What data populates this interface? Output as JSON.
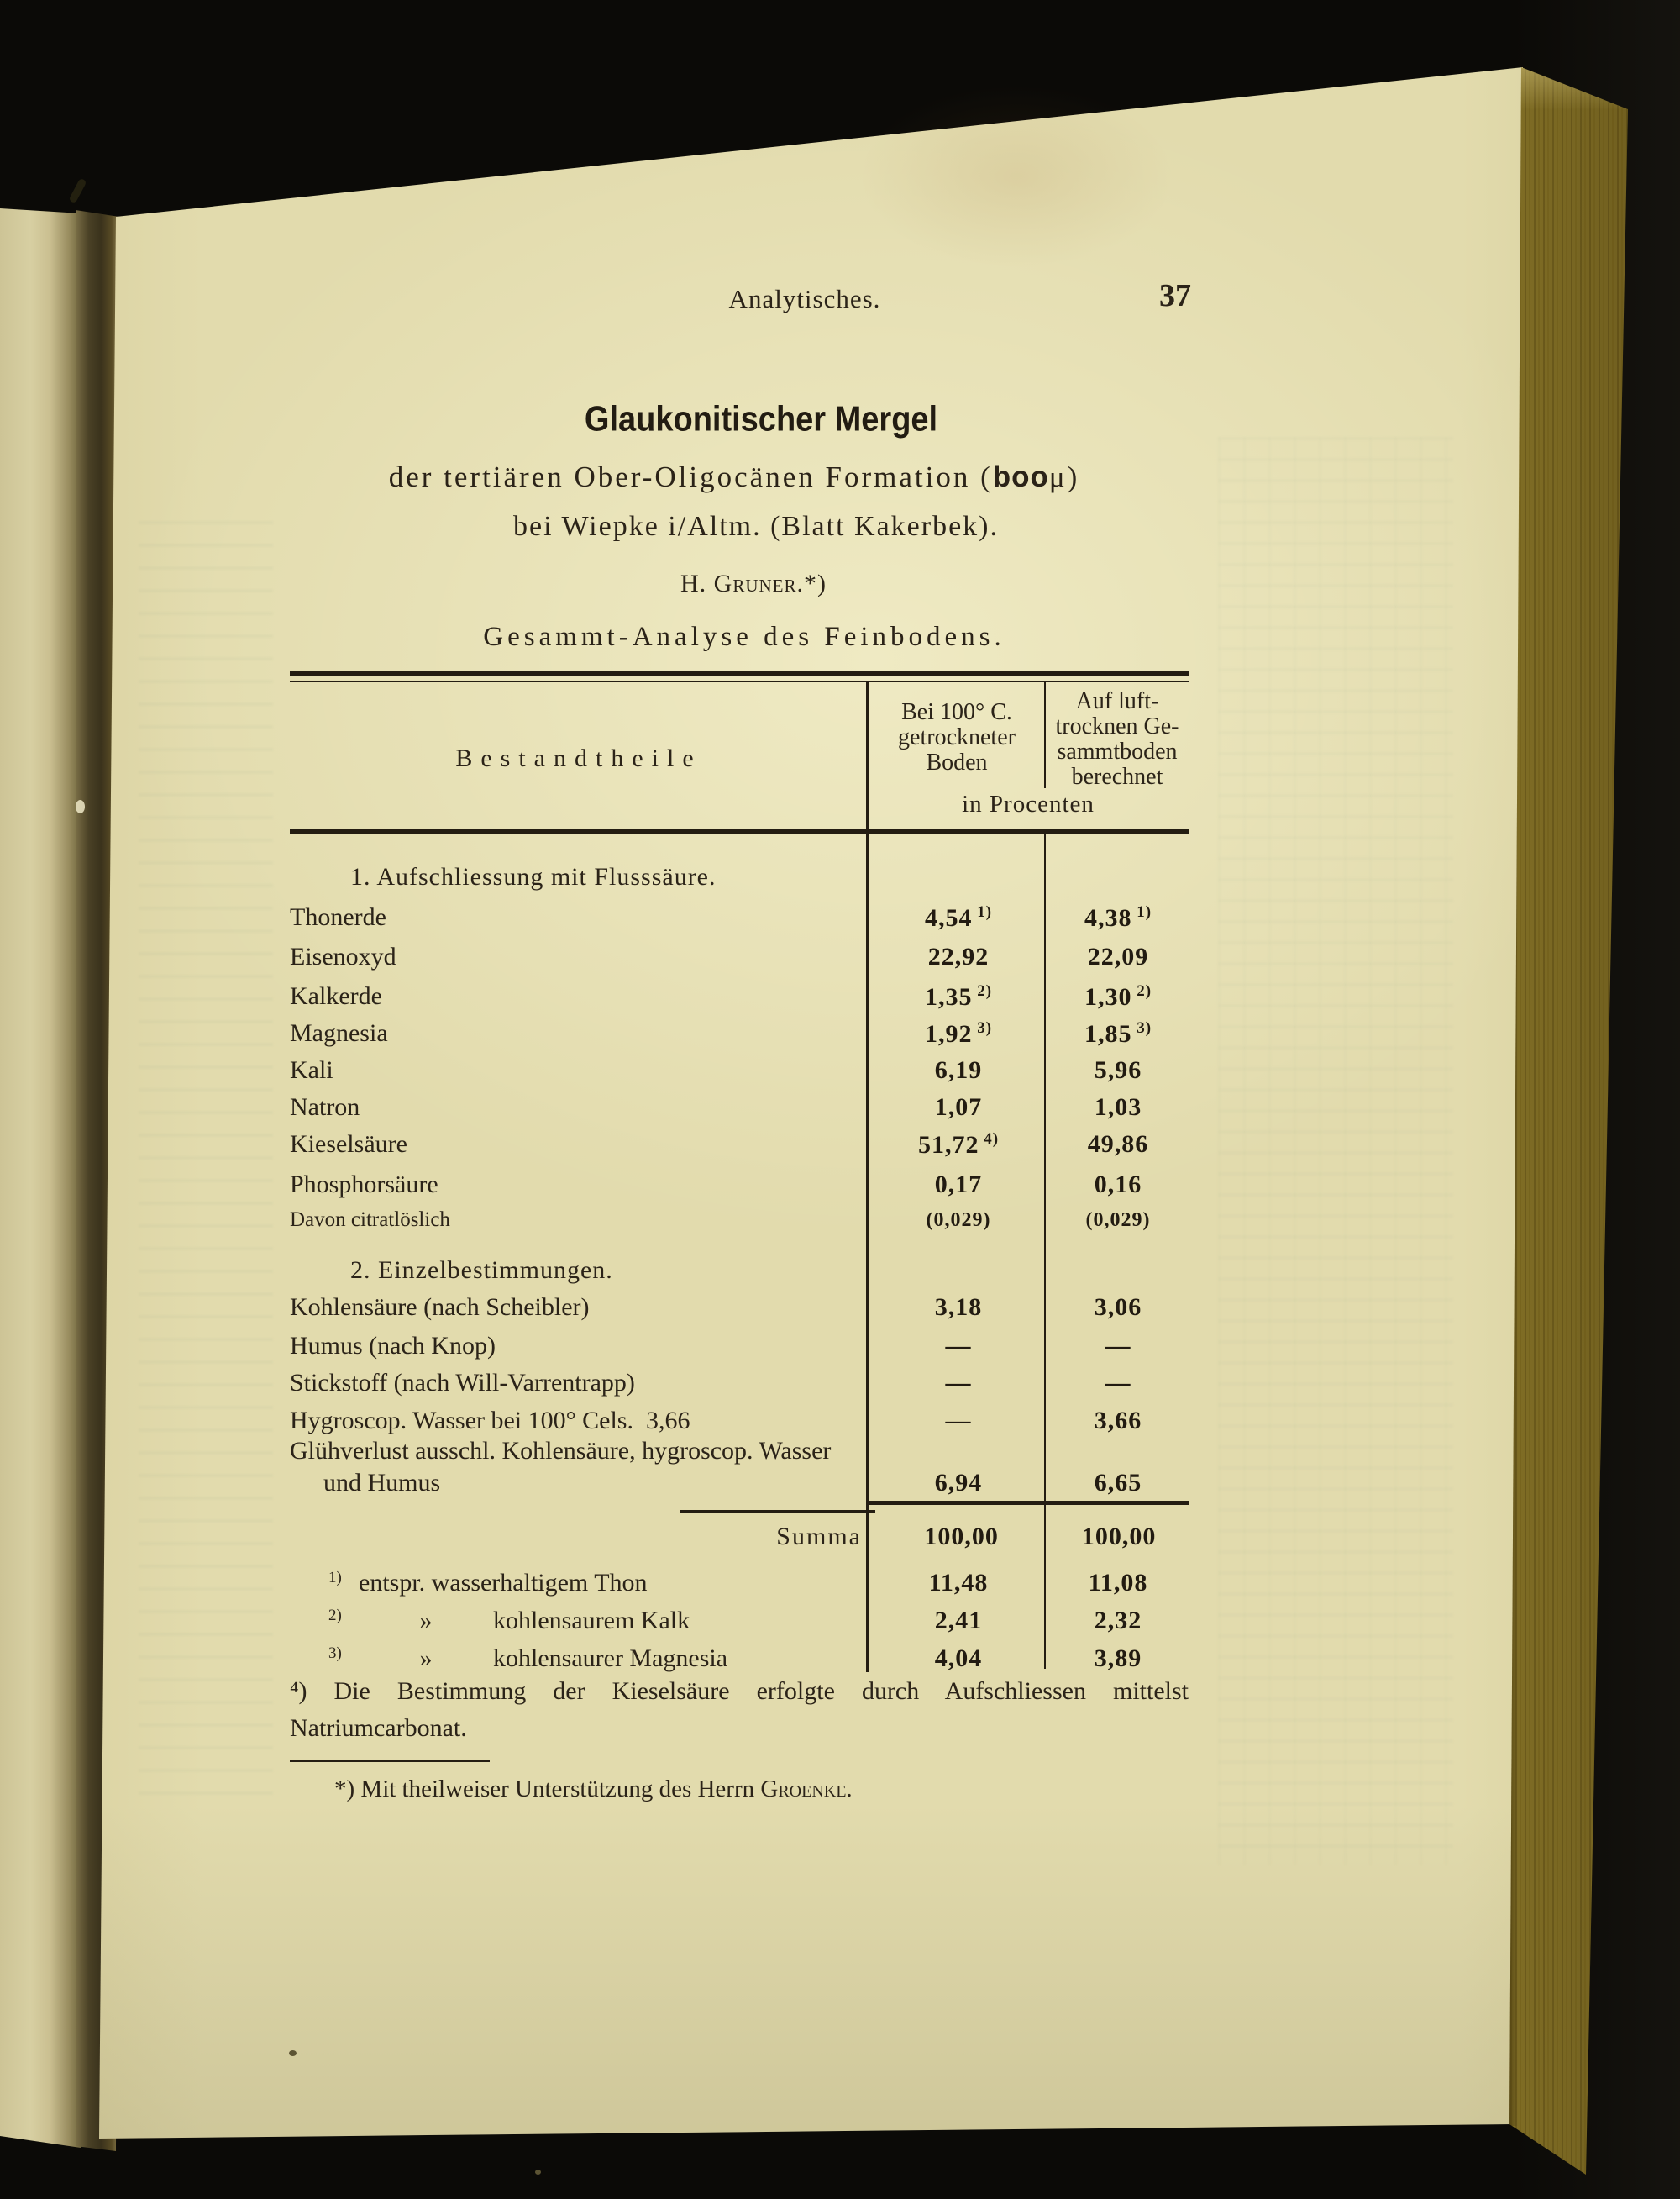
{
  "page": {
    "running_head": "Analytisches.",
    "page_number": "37",
    "title": "Glaukonitischer Mergel",
    "subtitle1_pre": "der tertiären Ober-Oligocänen Formation (",
    "subtitle1_bold": "boo",
    "subtitle1_post": "μ)",
    "subtitle2": "bei Wiepke i/Altm. (Blatt Kakerbek).",
    "author": "H. Gruner.*)",
    "table_title": "Gesammt-Analyse des Feinbodens."
  },
  "table": {
    "col1_header": "Bestandtheile",
    "col2_header_lines": [
      "Bei 100° C.",
      "getrockneter",
      "Boden"
    ],
    "col3_header_lines": [
      "Auf luft-",
      "trocknen Ge-",
      "sammtboden",
      "berechnet"
    ],
    "units_header": "in Procenten",
    "rows": [
      {
        "type": "section",
        "label": "1. Aufschliessung mit Flusssäure."
      },
      {
        "type": "row",
        "label": "Thonerde",
        "v1": "4,54",
        "m1": "1)",
        "v2": "4,38",
        "m2": "1)"
      },
      {
        "type": "row",
        "label": "Eisenoxyd",
        "v1": "22,92",
        "v2": "22,09"
      },
      {
        "type": "row",
        "label": "Kalkerde",
        "v1": "1,35",
        "m1": "2)",
        "v2": "1,30",
        "m2": "2)"
      },
      {
        "type": "row",
        "label": "Magnesia",
        "v1": "1,92",
        "m1": "3)",
        "v2": "1,85",
        "m2": "3)"
      },
      {
        "type": "row",
        "label": "Kali",
        "v1": "6,19",
        "v2": "5,96"
      },
      {
        "type": "row",
        "label": "Natron",
        "v1": "1,07",
        "v2": "1,03"
      },
      {
        "type": "row",
        "label": "Kieselsäure",
        "v1": "51,72",
        "m1": "4)",
        "v2": "49,86"
      },
      {
        "type": "row",
        "label": "Phosphorsäure",
        "v1": "0,17",
        "v2": "0,16"
      },
      {
        "type": "row",
        "small": true,
        "label": "Davon citratlöslich",
        "v1": "(0,029)",
        "v2": "(0,029)"
      },
      {
        "type": "section",
        "label": "2. Einzelbestimmungen."
      },
      {
        "type": "row",
        "label": "Kohlensäure (nach Scheibler)",
        "v1": "3,18",
        "v2": "3,06"
      },
      {
        "type": "row",
        "label": "Humus (nach Knop)",
        "v1": "—",
        "v2": "—"
      },
      {
        "type": "row",
        "label": "Stickstoff (nach Will-Varrentrapp)",
        "v1": "—",
        "v2": "—"
      },
      {
        "type": "row",
        "label": "Hygroscop. Wasser bei 100° Cels.  3,66",
        "v1": "—",
        "v2": "3,66"
      },
      {
        "type": "row2",
        "label1": "Glühverlust ausschl. Kohlensäure, hygroscop. Wasser",
        "label2": "und Humus",
        "v1": "6,94",
        "v2": "6,65"
      },
      {
        "type": "summa",
        "label": "Summa",
        "v1": "100,00",
        "v2": "100,00"
      },
      {
        "type": "fnrow",
        "marker": "1)",
        "guillemet": "",
        "label": "entspr. wasserhaltigem Thon",
        "v1": "11,48",
        "v2": "11,08"
      },
      {
        "type": "fnrow",
        "marker": "2)",
        "guillemet": "»",
        "label": "kohlensaurem Kalk",
        "v1": "2,41",
        "v2": "2,32"
      },
      {
        "type": "fnrow",
        "marker": "3)",
        "guillemet": "»",
        "label": "kohlensaurer Magnesia",
        "v1": "4,04",
        "v2": "3,89"
      }
    ]
  },
  "footnotes": {
    "note4_line1": "⁴) Die Bestimmung der Kieselsäure erfolgte durch Aufschliessen mittelst",
    "note4_line2": "Natriumcarbonat.",
    "star_pre": "*) Mit theilweiser Unterstützung des Herrn ",
    "star_name": "Groenke",
    "star_post": "."
  },
  "colors": {
    "paper": "#e2dbad",
    "ink": "#2b2318",
    "background": "#0b0a07",
    "fore_edge": "#c6b250"
  }
}
